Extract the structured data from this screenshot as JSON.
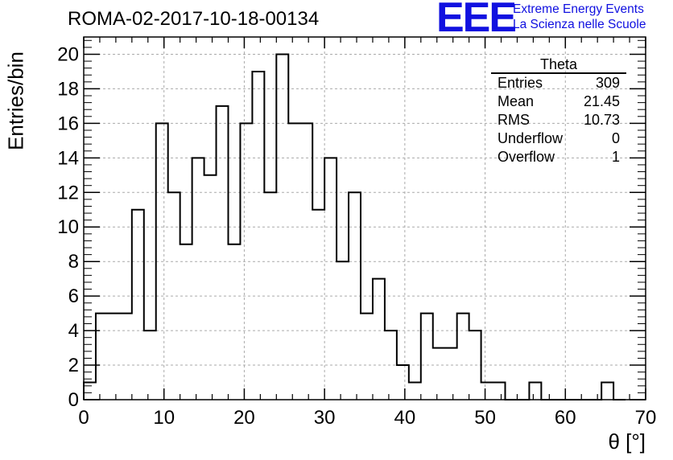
{
  "title": "ROMA-02-2017-10-18-00134",
  "logo": {
    "mark": "EEE",
    "line1": "Extreme Energy Events",
    "line2": "La Scienza nelle Scuole",
    "color": "#1010e0"
  },
  "stats": {
    "title": "Theta",
    "rows": [
      {
        "label": "Entries",
        "value": "309"
      },
      {
        "label": "Mean",
        "value": "21.45"
      },
      {
        "label": "RMS",
        "value": "10.73"
      },
      {
        "label": "Underflow",
        "value": "0"
      },
      {
        "label": "Overflow",
        "value": "1"
      }
    ]
  },
  "chart_data": {
    "type": "bar",
    "style": "step-histogram",
    "xlabel": "θ [°]",
    "ylabel": "Entries/bin",
    "xlim": [
      0,
      70
    ],
    "ylim": [
      0,
      21
    ],
    "bin_width": 1.5,
    "bin_start": 0,
    "values": [
      1,
      5,
      5,
      5,
      11,
      4,
      16,
      12,
      9,
      14,
      13,
      17,
      9,
      16,
      19,
      12,
      20,
      16,
      16,
      11,
      14,
      8,
      12,
      5,
      7,
      4,
      2,
      1,
      5,
      3,
      3,
      5,
      4,
      1,
      1,
      0,
      0,
      1,
      0,
      0,
      0,
      0,
      0,
      1,
      0
    ],
    "x_ticks": [
      0,
      10,
      20,
      30,
      40,
      50,
      60,
      70
    ],
    "y_ticks": [
      0,
      2,
      4,
      6,
      8,
      10,
      12,
      14,
      16,
      18,
      20
    ],
    "grid": true,
    "line_color": "#000000",
    "grid_color": "#aaaaaa"
  }
}
